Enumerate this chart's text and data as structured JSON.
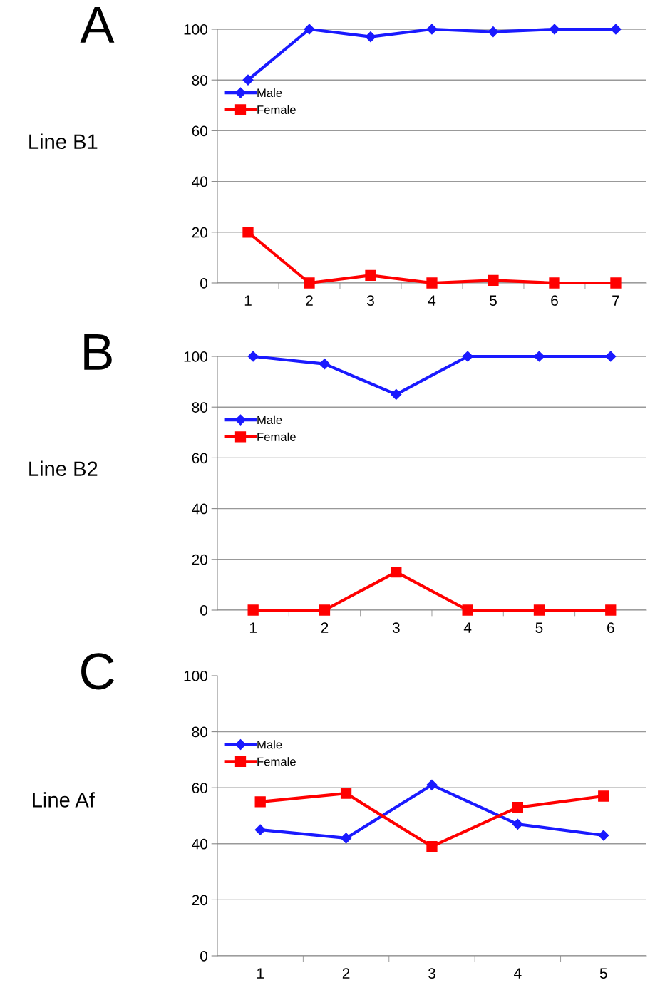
{
  "chart_data": [
    {
      "type": "line",
      "title": "A",
      "ylabel": "Line B1",
      "categories": [
        "1",
        "2",
        "3",
        "4",
        "5",
        "6",
        "7"
      ],
      "ylim": [
        0,
        100
      ],
      "yticks": [
        0,
        20,
        40,
        60,
        80,
        100
      ],
      "grid": "y",
      "legend": "top left",
      "series": [
        {
          "name": "Male",
          "color": "#1a1aff",
          "marker": "diamond",
          "values": [
            80,
            100,
            97,
            100,
            99,
            100,
            100
          ]
        },
        {
          "name": "Female",
          "color": "#ff0000",
          "marker": "square",
          "values": [
            20,
            0,
            3,
            0,
            1,
            0,
            0
          ]
        }
      ]
    },
    {
      "type": "line",
      "title": "B",
      "ylabel": "Line B2",
      "categories": [
        "1",
        "2",
        "3",
        "4",
        "5",
        "6"
      ],
      "ylim": [
        0,
        100
      ],
      "yticks": [
        0,
        20,
        40,
        60,
        80,
        100
      ],
      "grid": "y",
      "legend": "top left",
      "series": [
        {
          "name": "Male",
          "color": "#1a1aff",
          "marker": "diamond",
          "values": [
            100,
            97,
            85,
            100,
            100,
            100
          ]
        },
        {
          "name": "Female",
          "color": "#ff0000",
          "marker": "square",
          "values": [
            0,
            0,
            15,
            0,
            0,
            0
          ]
        }
      ]
    },
    {
      "type": "line",
      "title": "C",
      "ylabel": "Line Af",
      "categories": [
        "1",
        "2",
        "3",
        "4",
        "5"
      ],
      "ylim": [
        0,
        100
      ],
      "yticks": [
        0,
        20,
        40,
        60,
        80,
        100
      ],
      "grid": "y",
      "legend": "top left",
      "series": [
        {
          "name": "Male",
          "color": "#1a1aff",
          "marker": "diamond",
          "values": [
            45,
            42,
            61,
            47,
            43
          ]
        },
        {
          "name": "Female",
          "color": "#ff0000",
          "marker": "square",
          "values": [
            55,
            58,
            39,
            53,
            57
          ]
        }
      ]
    }
  ]
}
